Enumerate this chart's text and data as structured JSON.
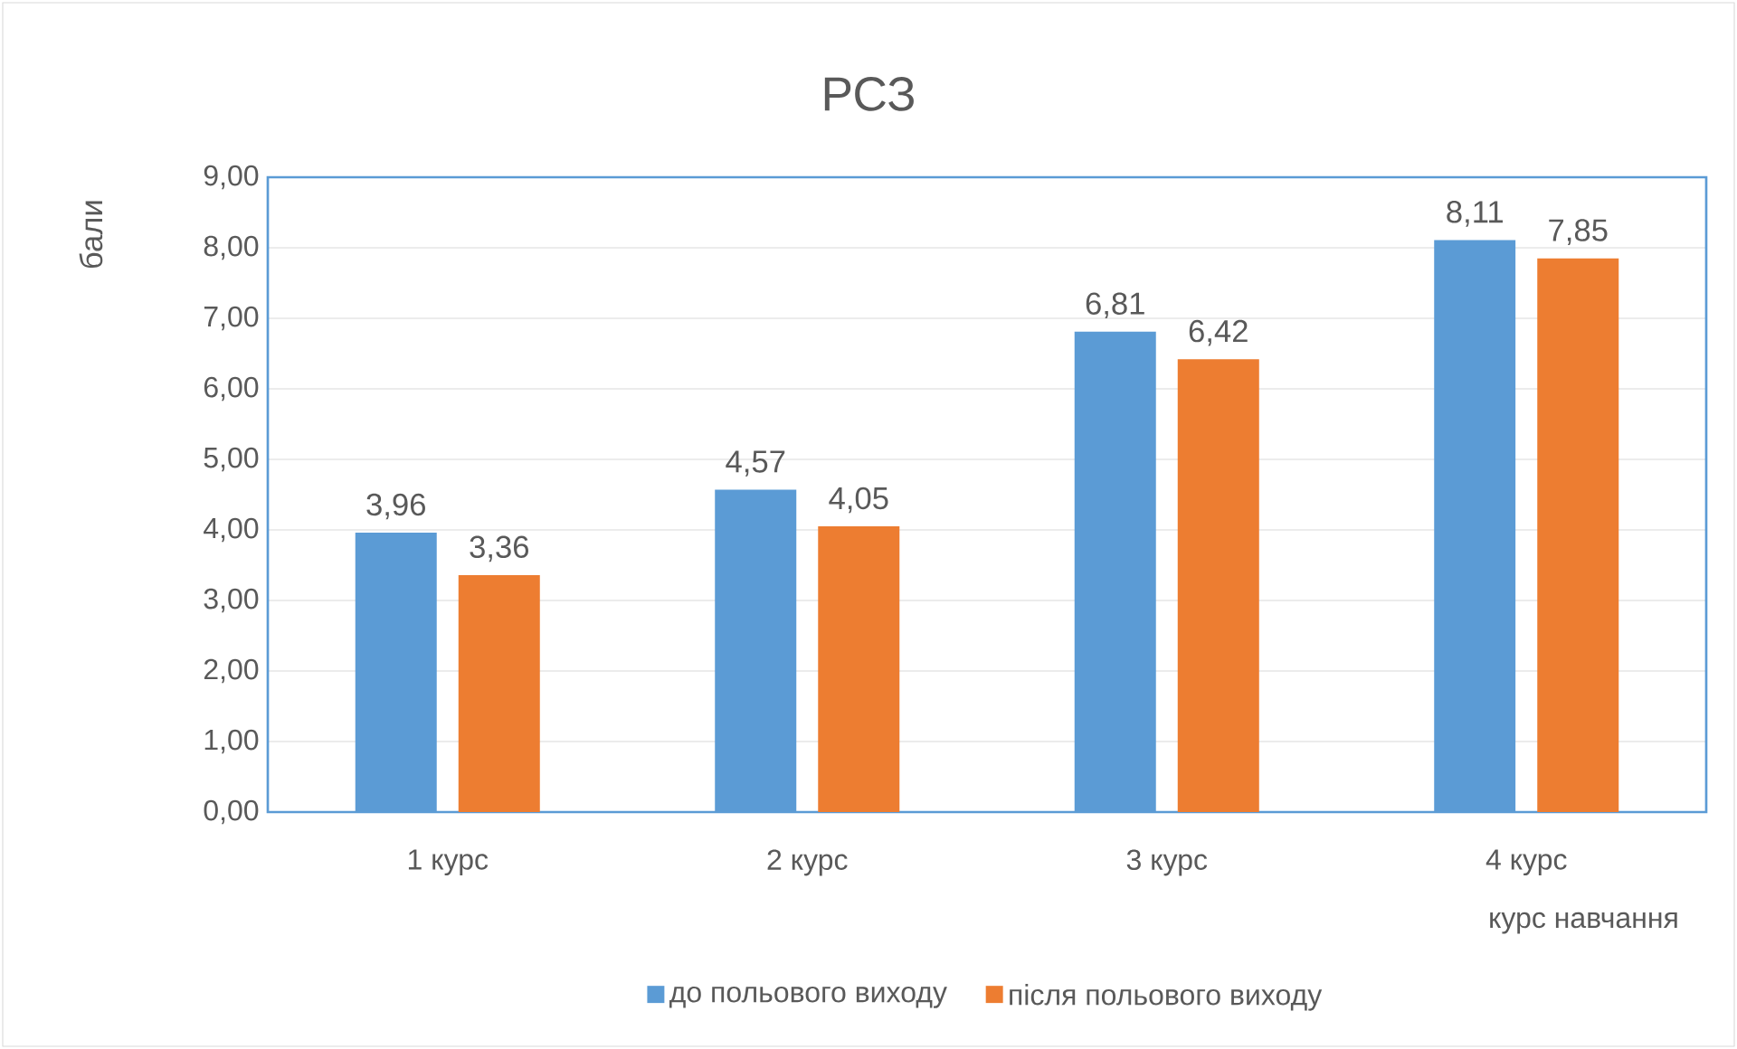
{
  "chart_data": {
    "type": "bar",
    "title": "РСЗ",
    "ylabel": "бали",
    "xlabel": "курс навчання",
    "categories": [
      "1 курс",
      "2 курс",
      "3 курс",
      "4 курс"
    ],
    "series": [
      {
        "name": "до польового виходу",
        "color": "#5b9bd5",
        "values": [
          3.96,
          4.57,
          6.81,
          8.11
        ],
        "value_labels": [
          "3,96",
          "4,57",
          "6,81",
          "8,11"
        ]
      },
      {
        "name": "після польового виходу",
        "color": "#ed7d31",
        "values": [
          3.36,
          4.05,
          6.42,
          7.85
        ],
        "value_labels": [
          "3,36",
          "4,05",
          "6,42",
          "7,85"
        ]
      }
    ],
    "ylim": [
      0,
      9
    ],
    "yticks": [
      {
        "value": 0,
        "label": "0,00"
      },
      {
        "value": 1,
        "label": "1,00"
      },
      {
        "value": 2,
        "label": "2,00"
      },
      {
        "value": 3,
        "label": "3,00"
      },
      {
        "value": 4,
        "label": "4,00"
      },
      {
        "value": 5,
        "label": "5,00"
      },
      {
        "value": 6,
        "label": "6,00"
      },
      {
        "value": 7,
        "label": "7,00"
      },
      {
        "value": 8,
        "label": "8,00"
      },
      {
        "value": 9,
        "label": "9,00"
      }
    ],
    "grid": "y",
    "legend": "bottom"
  }
}
